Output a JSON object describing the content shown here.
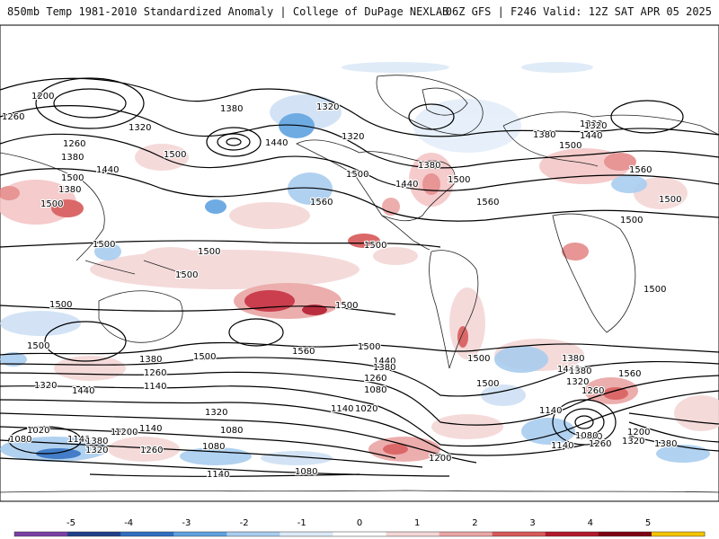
{
  "header": {
    "title": "850mb Temp 1981-2010 Standardized Anomaly | College of DuPage NEXLAB",
    "run_info": "06Z GFS | F246 Valid: 12Z SAT APR 05 2025"
  },
  "contour_labels": [
    "1200",
    "1260",
    "1320",
    "1380",
    "1260",
    "1380",
    "1500",
    "1440",
    "1500",
    "1500",
    "1380",
    "1320",
    "1320",
    "1440",
    "1380",
    "1500",
    "1380",
    "1500",
    "1440",
    "1500",
    "1560",
    "1560",
    "1320",
    "1440",
    "1380",
    "1500",
    "1560",
    "1500",
    "1500",
    "1500",
    "1500",
    "1500",
    "1500",
    "1500",
    "1500",
    "1500",
    "1560",
    "1500",
    "1500",
    "1380",
    "1440",
    "1260",
    "1140",
    "1080",
    "1380",
    "1440",
    "1560",
    "1320",
    "1260",
    "1080",
    "1320",
    "1440",
    "1500",
    "1140",
    "1200",
    "1320",
    "1380",
    "1500",
    "1020",
    "1080",
    "1140",
    "1080",
    "1200",
    "1140",
    "1080",
    "1260",
    "1320",
    "1380",
    "1200",
    "1080",
    "1020",
    "1140",
    "1080",
    "1140",
    "1260",
    "1320",
    "1380",
    "1380",
    "1260",
    "1200",
    "1140"
  ],
  "colorbar": {
    "ticks": [
      "-5",
      "-4",
      "-3",
      "-2",
      "-1",
      "0",
      "1",
      "2",
      "3",
      "4",
      "5"
    ],
    "colors": [
      "#7b3fa6",
      "#1f3f8a",
      "#2f6fc2",
      "#5fa2e0",
      "#a9cdef",
      "#dce9f7",
      "#ffffff",
      "#f4d6d6",
      "#eba5a5",
      "#d85858",
      "#b3172b",
      "#7d0012",
      "#f5c400"
    ]
  }
}
